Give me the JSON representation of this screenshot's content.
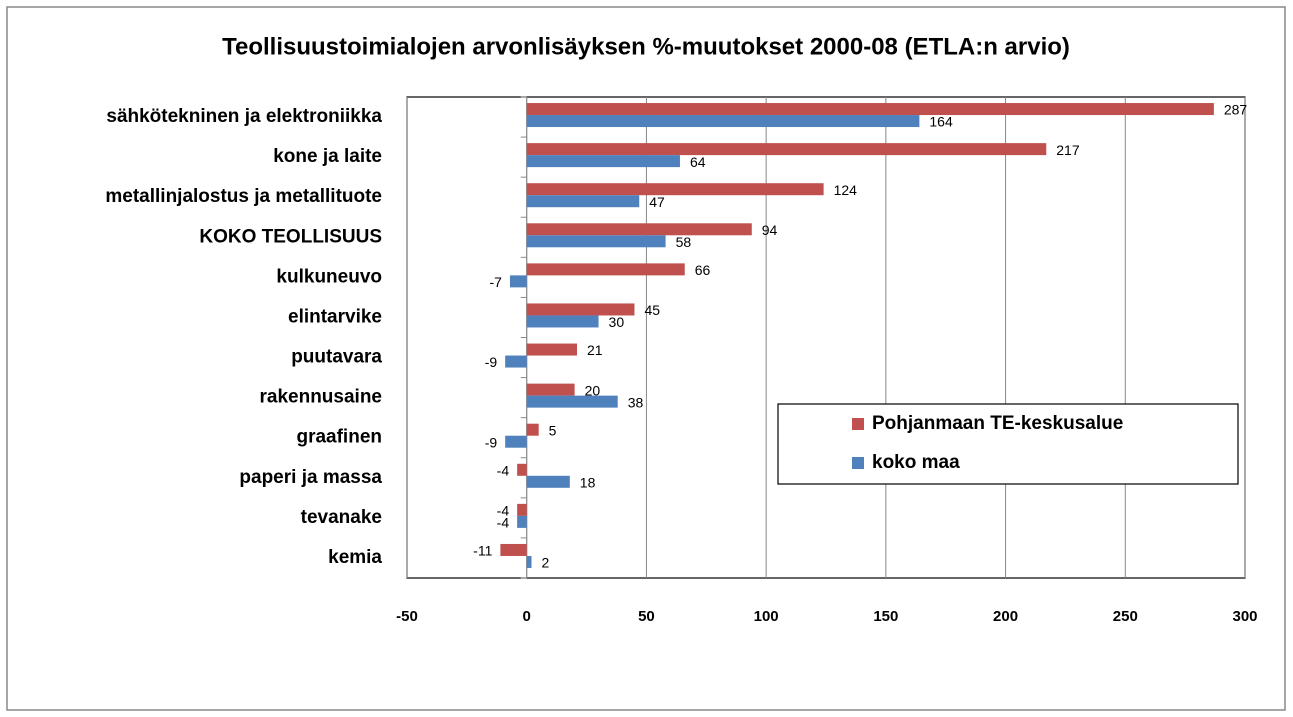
{
  "chart_data": {
    "type": "hbar",
    "title": "Teollisuustoimialojen arvonlisäyksen %-muutokset 2000-08 (ETLA:n arvio)",
    "categories": [
      "sähkötekninen ja elektroniikka",
      "kone ja laite",
      "metallinjalostus ja metallituote",
      "KOKO TEOLLISUUS",
      "kulkuneuvo",
      "elintarvike",
      "puutavara",
      "rakennusaine",
      "graafinen",
      "paperi ja massa",
      "tevanake",
      "kemia"
    ],
    "series": [
      {
        "name": "Pohjanmaan TE-keskusalue",
        "color": "#c0504d",
        "values": [
          287,
          217,
          124,
          94,
          66,
          45,
          21,
          20,
          5,
          -4,
          -4,
          -11
        ]
      },
      {
        "name": "koko maa",
        "color": "#4f81bd",
        "values": [
          164,
          64,
          47,
          58,
          -7,
          30,
          -9,
          38,
          -9,
          18,
          -4,
          2
        ]
      }
    ],
    "xlim": [
      -50,
      300
    ],
    "xticks": [
      -50,
      0,
      50,
      100,
      150,
      200,
      250,
      300
    ],
    "grid": true
  }
}
